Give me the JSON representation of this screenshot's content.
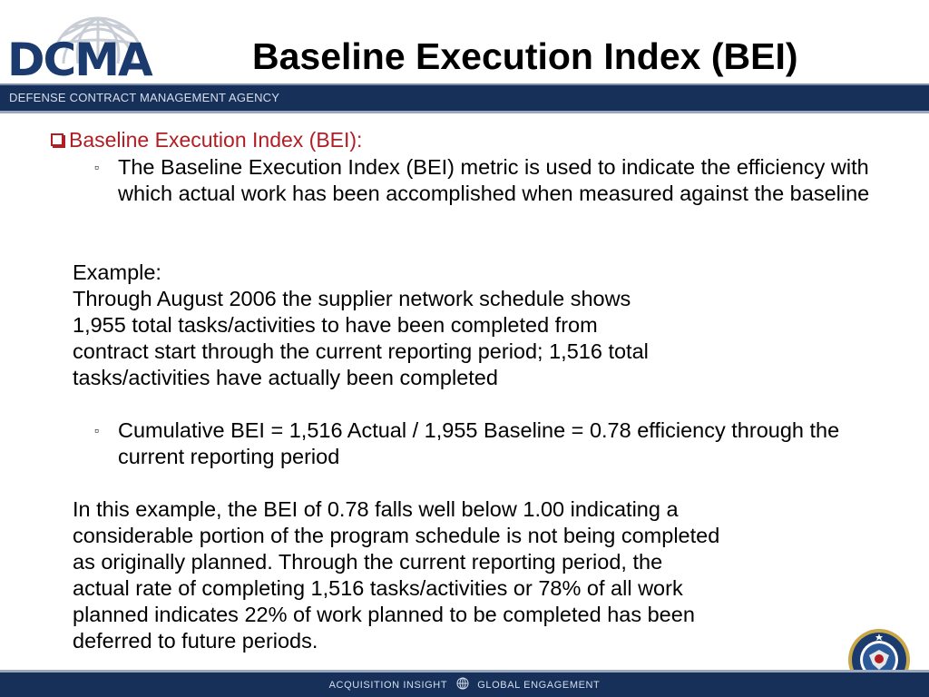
{
  "logo": {
    "text": "DCMA",
    "agency_name": "DEFENSE CONTRACT MANAGEMENT AGENCY"
  },
  "title": "Baseline Execution Index (BEI)",
  "heading": "Baseline Execution Index (BEI):",
  "bullet_1": "The Baseline Execution Index (BEI) metric is used to indicate the efficiency with which actual work has been accomplished when measured against the baseline",
  "example": {
    "label": "Example:",
    "lines": [
      "Through August 2006 the supplier network schedule shows",
      "1,955 total tasks/activities to have been completed from",
      "contract start through the current reporting period; 1,516 total",
      "tasks/activities have actually been completed"
    ]
  },
  "bullet_2": "Cumulative BEI = 1,516 Actual / 1,955 Baseline = 0.78 efficiency through the current reporting period",
  "conclusion_lines": [
    "In this example, the BEI of 0.78 falls well below 1.00 indicating a",
    "considerable portion of the program schedule is not being completed",
    "as originally planned.   Through the current reporting period, the",
    "actual rate of completing 1,516 tasks/activities or 78% of all work",
    "planned indicates 22% of work planned to be completed has been",
    "deferred to future periods."
  ],
  "footer": {
    "left": "ACQUISITION INSIGHT",
    "right": "GLOBAL ENGAGEMENT"
  },
  "colors": {
    "navy": "#16305a",
    "logo_blue": "#1b3b6f",
    "heading_red": "#b01e23"
  }
}
